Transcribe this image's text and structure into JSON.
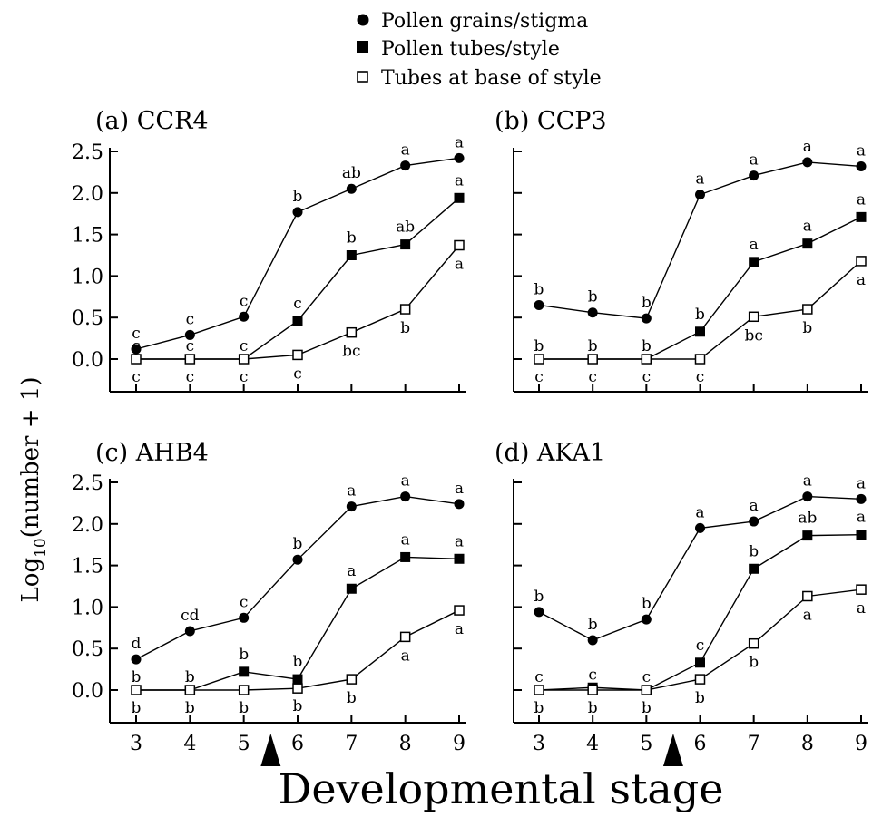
{
  "legend": [
    {
      "marker": "filled-circle",
      "label": "Pollen grains/stigma"
    },
    {
      "marker": "filled-square",
      "label": "Pollen tubes/style"
    },
    {
      "marker": "open-square",
      "label": "Tubes at base of style"
    }
  ],
  "ylabel_main": "Log",
  "ylabel_sub": "10",
  "ylabel_rest": "(number + 1)",
  "xlabel": "Developmental stage",
  "chart_data": [
    {
      "type": "line",
      "title": "(a)  CCR4",
      "x": [
        3,
        4,
        5,
        6,
        7,
        8,
        9
      ],
      "xticks": [
        "3",
        "4",
        "5",
        "6",
        "7",
        "8",
        "9"
      ],
      "yticks": [
        "0.0",
        "0.5",
        "1.0",
        "1.5",
        "2.0",
        "2.5"
      ],
      "ylim": [
        -0.4,
        2.5
      ],
      "series": [
        {
          "name": "Pollen grains/stigma",
          "marker": "filled-circle",
          "values": [
            0.12,
            0.29,
            0.51,
            1.77,
            2.05,
            2.33,
            2.42
          ],
          "labels": [
            "c",
            "c",
            "c",
            "b",
            "ab",
            "a",
            "a"
          ]
        },
        {
          "name": "Pollen tubes/style",
          "marker": "filled-square",
          "values": [
            0.0,
            0.0,
            0.0,
            0.46,
            1.25,
            1.38,
            1.94
          ],
          "labels": [
            "c",
            "c",
            "c",
            "c",
            "b",
            "ab",
            "a"
          ]
        },
        {
          "name": "Tubes at base of style",
          "marker": "open-square",
          "values": [
            0.0,
            0.0,
            0.0,
            0.05,
            0.32,
            0.6,
            1.37
          ],
          "labels": [
            "c",
            "c",
            "c",
            "c",
            "bc",
            "b",
            "a"
          ]
        }
      ]
    },
    {
      "type": "line",
      "title": "(b)  CCP3",
      "x": [
        3,
        4,
        5,
        6,
        7,
        8,
        9
      ],
      "xticks": [
        "3",
        "4",
        "5",
        "6",
        "7",
        "8",
        "9"
      ],
      "yticks": [
        "0.0",
        "0.5",
        "1.0",
        "1.5",
        "2.0",
        "2.5"
      ],
      "ylim": [
        -0.4,
        2.5
      ],
      "series": [
        {
          "name": "Pollen grains/stigma",
          "marker": "filled-circle",
          "values": [
            0.65,
            0.56,
            0.49,
            1.98,
            2.21,
            2.37,
            2.32
          ],
          "labels": [
            "b",
            "b",
            "b",
            "a",
            "a",
            "a",
            "a"
          ]
        },
        {
          "name": "Pollen tubes/style",
          "marker": "filled-square",
          "values": [
            0.0,
            0.0,
            0.0,
            0.33,
            1.17,
            1.39,
            1.71
          ],
          "labels": [
            "b",
            "b",
            "b",
            "b",
            "a",
            "a",
            "a"
          ]
        },
        {
          "name": "Tubes at base of style",
          "marker": "open-square",
          "values": [
            0.0,
            0.0,
            0.0,
            0.0,
            0.51,
            0.6,
            1.18
          ],
          "labels": [
            "c",
            "c",
            "c",
            "c",
            "bc",
            "b",
            "a"
          ]
        }
      ]
    },
    {
      "type": "line",
      "title": "(c)  AHB4",
      "x": [
        3,
        4,
        5,
        6,
        7,
        8,
        9
      ],
      "xticks": [
        "3",
        "4",
        "5",
        "6",
        "7",
        "8",
        "9"
      ],
      "yticks": [
        "0.0",
        "0.5",
        "1.0",
        "1.5",
        "2.0",
        "2.5"
      ],
      "ylim": [
        -0.4,
        2.5
      ],
      "series": [
        {
          "name": "Pollen grains/stigma",
          "marker": "filled-circle",
          "values": [
            0.37,
            0.71,
            0.87,
            1.57,
            2.21,
            2.33,
            2.24
          ],
          "labels": [
            "d",
            "cd",
            "c",
            "b",
            "a",
            "a",
            "a"
          ]
        },
        {
          "name": "Pollen tubes/style",
          "marker": "filled-square",
          "values": [
            0.0,
            0.0,
            0.22,
            0.13,
            1.22,
            1.6,
            1.58
          ],
          "labels": [
            "b",
            "b",
            "b",
            "b",
            "a",
            "a",
            "a"
          ]
        },
        {
          "name": "Tubes at base of style",
          "marker": "open-square",
          "values": [
            0.0,
            0.0,
            0.0,
            0.02,
            0.13,
            0.64,
            0.96
          ],
          "labels": [
            "b",
            "b",
            "b",
            "b",
            "b",
            "a",
            "a"
          ]
        }
      ]
    },
    {
      "type": "line",
      "title": "(d)  AKA1",
      "x": [
        3,
        4,
        5,
        6,
        7,
        8,
        9
      ],
      "xticks": [
        "3",
        "4",
        "5",
        "6",
        "7",
        "8",
        "9"
      ],
      "yticks": [
        "0.0",
        "0.5",
        "1.0",
        "1.5",
        "2.0",
        "2.5"
      ],
      "ylim": [
        -0.4,
        2.5
      ],
      "series": [
        {
          "name": "Pollen grains/stigma",
          "marker": "filled-circle",
          "values": [
            0.94,
            0.6,
            0.85,
            1.95,
            2.03,
            2.33,
            2.3
          ],
          "labels": [
            "b",
            "b",
            "b",
            "a",
            "a",
            "a",
            "a"
          ]
        },
        {
          "name": "Pollen tubes/style",
          "marker": "filled-square",
          "values": [
            0.0,
            0.03,
            0.0,
            0.33,
            1.46,
            1.86,
            1.87
          ],
          "labels": [
            "c",
            "c",
            "c",
            "c",
            "b",
            "ab",
            "a"
          ]
        },
        {
          "name": "Tubes at base of style",
          "marker": "open-square",
          "values": [
            0.0,
            0.0,
            0.0,
            0.13,
            0.56,
            1.13,
            1.21
          ],
          "labels": [
            "b",
            "b",
            "b",
            "b",
            "b",
            "a",
            "a"
          ]
        }
      ]
    }
  ],
  "arrow_marker": {
    "stage": 5.5,
    "description": "arrow"
  }
}
